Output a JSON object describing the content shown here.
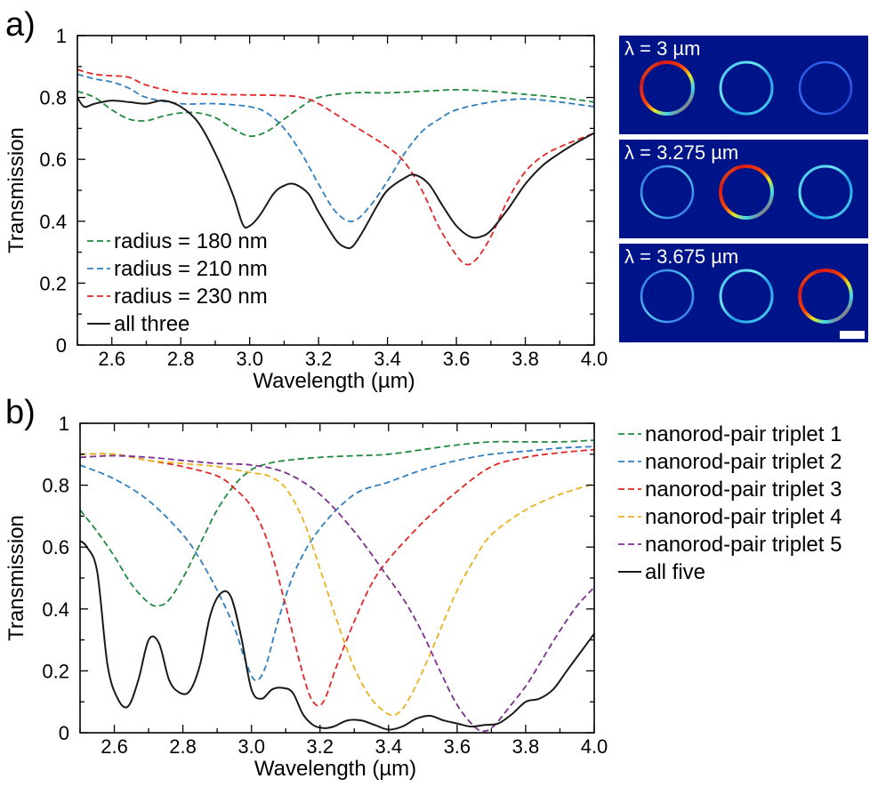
{
  "panel_a_label": "a)",
  "panel_b_label": "b)",
  "chart_data": [
    {
      "type": "line",
      "panel": "a",
      "xlabel": "Wavelength (µm)",
      "ylabel": "Transmission",
      "xlim": [
        2.5,
        4.0
      ],
      "ylim": [
        0,
        1
      ],
      "xticks": [
        2.6,
        2.8,
        3.0,
        3.2,
        3.4,
        3.6,
        3.8,
        4.0
      ],
      "xtick_labels": [
        "2.6",
        "2.8",
        "3.0",
        "3.2",
        "3.4",
        "3.6",
        "3.8",
        "4.0"
      ],
      "yticks": [
        0,
        0.2,
        0.4,
        0.6,
        0.8,
        1
      ],
      "ytick_labels": [
        "0",
        "0.2",
        "0.4",
        "0.6",
        "0.8",
        "1"
      ],
      "legend_position": "bottom-left",
      "series": [
        {
          "name": "radius = 180 nm",
          "color": "#1f8a3e",
          "style": "dashed",
          "x": [
            2.5,
            2.55,
            2.6,
            2.65,
            2.7,
            2.75,
            2.8,
            2.85,
            2.9,
            2.95,
            3.0,
            3.05,
            3.1,
            3.15,
            3.2,
            3.3,
            3.4,
            3.5,
            3.6,
            3.7,
            3.8,
            3.9,
            4.0
          ],
          "y": [
            0.82,
            0.8,
            0.76,
            0.73,
            0.725,
            0.74,
            0.75,
            0.75,
            0.735,
            0.7,
            0.675,
            0.69,
            0.73,
            0.77,
            0.8,
            0.815,
            0.815,
            0.82,
            0.825,
            0.82,
            0.81,
            0.8,
            0.785
          ]
        },
        {
          "name": "radius = 210 nm",
          "color": "#2f7fc0",
          "style": "dashed",
          "x": [
            2.5,
            2.55,
            2.6,
            2.65,
            2.7,
            2.8,
            2.9,
            3.0,
            3.05,
            3.1,
            3.15,
            3.2,
            3.25,
            3.3,
            3.35,
            3.4,
            3.45,
            3.5,
            3.55,
            3.6,
            3.7,
            3.8,
            3.9,
            4.0
          ],
          "y": [
            0.875,
            0.86,
            0.85,
            0.83,
            0.8,
            0.78,
            0.78,
            0.77,
            0.75,
            0.7,
            0.62,
            0.52,
            0.43,
            0.4,
            0.45,
            0.53,
            0.62,
            0.69,
            0.73,
            0.76,
            0.785,
            0.795,
            0.785,
            0.77
          ]
        },
        {
          "name": "radius = 230 nm",
          "color": "#e32626",
          "style": "dashed",
          "x": [
            2.5,
            2.55,
            2.6,
            2.65,
            2.7,
            2.8,
            2.9,
            3.0,
            3.1,
            3.15,
            3.2,
            3.3,
            3.4,
            3.45,
            3.5,
            3.55,
            3.6,
            3.63,
            3.66,
            3.7,
            3.75,
            3.8,
            3.85,
            3.9,
            4.0
          ],
          "y": [
            0.89,
            0.875,
            0.87,
            0.865,
            0.84,
            0.815,
            0.81,
            0.808,
            0.806,
            0.8,
            0.78,
            0.71,
            0.64,
            0.59,
            0.5,
            0.38,
            0.29,
            0.26,
            0.28,
            0.35,
            0.47,
            0.56,
            0.61,
            0.64,
            0.685
          ]
        },
        {
          "name": "all three",
          "color": "#1a1a1a",
          "style": "solid",
          "x": [
            2.5,
            2.52,
            2.55,
            2.6,
            2.65,
            2.7,
            2.75,
            2.8,
            2.85,
            2.9,
            2.95,
            2.98,
            3.0,
            3.03,
            3.07,
            3.1,
            3.13,
            3.17,
            3.2,
            3.25,
            3.28,
            3.3,
            3.33,
            3.37,
            3.4,
            3.45,
            3.48,
            3.52,
            3.56,
            3.6,
            3.64,
            3.67,
            3.7,
            3.75,
            3.8,
            3.85,
            3.9,
            3.95,
            4.0
          ],
          "y": [
            0.8,
            0.77,
            0.78,
            0.79,
            0.785,
            0.78,
            0.79,
            0.77,
            0.72,
            0.62,
            0.49,
            0.39,
            0.385,
            0.42,
            0.49,
            0.515,
            0.52,
            0.49,
            0.43,
            0.34,
            0.315,
            0.32,
            0.37,
            0.45,
            0.5,
            0.54,
            0.55,
            0.52,
            0.45,
            0.385,
            0.35,
            0.35,
            0.37,
            0.44,
            0.52,
            0.58,
            0.62,
            0.655,
            0.685
          ]
        }
      ]
    },
    {
      "type": "heatmap",
      "panel": "a-inset",
      "description_labels": [
        "λ = 3 µm",
        "λ = 3.275 µm",
        "λ = 3.675 µm"
      ],
      "rows": [
        {
          "label": "λ = 3 µm",
          "rings": [
            "hot",
            "medium",
            "dim"
          ]
        },
        {
          "label": "λ = 3.275 µm",
          "rings": [
            "faint",
            "hot",
            "medium"
          ]
        },
        {
          "label": "λ = 3.675 µm",
          "rings": [
            "faint",
            "medium",
            "hot"
          ]
        }
      ]
    },
    {
      "type": "line",
      "panel": "b",
      "xlabel": "Wavelength (µm)",
      "ylabel": "Transmission",
      "xlim": [
        2.5,
        4.0
      ],
      "ylim": [
        0,
        1
      ],
      "xticks": [
        2.6,
        2.8,
        3.0,
        3.2,
        3.4,
        3.6,
        3.8,
        4.0
      ],
      "xtick_labels": [
        "2.6",
        "2.8",
        "3.0",
        "3.2",
        "3.4",
        "3.6",
        "3.8",
        "4.0"
      ],
      "yticks": [
        0,
        0.2,
        0.4,
        0.6,
        0.8,
        1
      ],
      "ytick_labels": [
        "0",
        "0.2",
        "0.4",
        "0.6",
        "0.8",
        "1"
      ],
      "legend_position": "right-outside",
      "series": [
        {
          "name": "nanorod-pair triplet 1",
          "color": "#1f8a3e",
          "style": "dashed",
          "x": [
            2.5,
            2.55,
            2.6,
            2.65,
            2.7,
            2.73,
            2.76,
            2.8,
            2.85,
            2.9,
            2.95,
            3.0,
            3.05,
            3.1,
            3.2,
            3.3,
            3.4,
            3.5,
            3.6,
            3.7,
            3.8,
            3.9,
            4.0
          ],
          "y": [
            0.72,
            0.65,
            0.57,
            0.48,
            0.42,
            0.41,
            0.43,
            0.5,
            0.61,
            0.72,
            0.8,
            0.85,
            0.87,
            0.88,
            0.89,
            0.895,
            0.9,
            0.915,
            0.93,
            0.94,
            0.94,
            0.94,
            0.945
          ]
        },
        {
          "name": "nanorod-pair triplet 2",
          "color": "#2f7fc0",
          "style": "dashed",
          "x": [
            2.5,
            2.6,
            2.7,
            2.8,
            2.85,
            2.9,
            2.95,
            2.98,
            3.01,
            3.04,
            3.08,
            3.13,
            3.2,
            3.3,
            3.4,
            3.5,
            3.6,
            3.7,
            3.8,
            3.9,
            4.0
          ],
          "y": [
            0.865,
            0.82,
            0.75,
            0.64,
            0.56,
            0.46,
            0.34,
            0.24,
            0.17,
            0.21,
            0.37,
            0.53,
            0.66,
            0.77,
            0.81,
            0.85,
            0.88,
            0.9,
            0.91,
            0.92,
            0.925
          ]
        },
        {
          "name": "nanorod-pair triplet 3",
          "color": "#e32626",
          "style": "dashed",
          "x": [
            2.5,
            2.6,
            2.7,
            2.8,
            2.9,
            2.95,
            3.0,
            3.05,
            3.1,
            3.15,
            3.18,
            3.21,
            3.25,
            3.3,
            3.35,
            3.4,
            3.5,
            3.6,
            3.7,
            3.8,
            3.9,
            4.0
          ],
          "y": [
            0.9,
            0.9,
            0.88,
            0.86,
            0.83,
            0.79,
            0.73,
            0.61,
            0.41,
            0.19,
            0.1,
            0.1,
            0.22,
            0.36,
            0.48,
            0.56,
            0.68,
            0.78,
            0.86,
            0.89,
            0.905,
            0.915
          ]
        },
        {
          "name": "nanorod-pair triplet 4",
          "color": "#e8b21f",
          "style": "dashed",
          "x": [
            2.5,
            2.6,
            2.7,
            2.8,
            2.9,
            3.0,
            3.05,
            3.1,
            3.15,
            3.2,
            3.25,
            3.3,
            3.35,
            3.4,
            3.43,
            3.46,
            3.5,
            3.55,
            3.6,
            3.65,
            3.7,
            3.8,
            3.9,
            4.0
          ],
          "y": [
            0.9,
            0.9,
            0.88,
            0.87,
            0.86,
            0.84,
            0.83,
            0.79,
            0.69,
            0.53,
            0.36,
            0.21,
            0.11,
            0.06,
            0.065,
            0.11,
            0.2,
            0.33,
            0.46,
            0.56,
            0.64,
            0.72,
            0.77,
            0.805
          ]
        },
        {
          "name": "nanorod-pair triplet 5",
          "color": "#7b2f8e",
          "style": "dashed",
          "x": [
            2.5,
            2.6,
            2.7,
            2.8,
            2.9,
            3.0,
            3.1,
            3.2,
            3.3,
            3.4,
            3.45,
            3.5,
            3.55,
            3.6,
            3.65,
            3.68,
            3.71,
            3.75,
            3.8,
            3.85,
            3.9,
            3.95,
            4.0
          ],
          "y": [
            0.89,
            0.895,
            0.89,
            0.88,
            0.87,
            0.865,
            0.84,
            0.77,
            0.65,
            0.5,
            0.42,
            0.32,
            0.2,
            0.09,
            0.02,
            0.005,
            0.025,
            0.08,
            0.15,
            0.24,
            0.33,
            0.41,
            0.47
          ]
        },
        {
          "name": "all five",
          "color": "#1a1a1a",
          "style": "solid",
          "x": [
            2.5,
            2.52,
            2.55,
            2.58,
            2.61,
            2.64,
            2.67,
            2.7,
            2.73,
            2.76,
            2.79,
            2.82,
            2.85,
            2.88,
            2.91,
            2.94,
            2.97,
            3.0,
            3.03,
            3.06,
            3.09,
            3.12,
            3.15,
            3.18,
            3.21,
            3.24,
            3.28,
            3.32,
            3.36,
            3.4,
            3.44,
            3.48,
            3.52,
            3.56,
            3.6,
            3.64,
            3.68,
            3.72,
            3.76,
            3.8,
            3.84,
            3.88,
            3.92,
            3.96,
            4.0
          ],
          "y": [
            0.62,
            0.6,
            0.52,
            0.22,
            0.11,
            0.085,
            0.17,
            0.3,
            0.29,
            0.17,
            0.13,
            0.135,
            0.22,
            0.38,
            0.45,
            0.44,
            0.31,
            0.14,
            0.11,
            0.14,
            0.145,
            0.13,
            0.06,
            0.025,
            0.015,
            0.02,
            0.04,
            0.04,
            0.025,
            0.01,
            0.02,
            0.045,
            0.055,
            0.04,
            0.03,
            0.02,
            0.025,
            0.03,
            0.06,
            0.1,
            0.11,
            0.14,
            0.2,
            0.26,
            0.32
          ]
        }
      ]
    }
  ]
}
